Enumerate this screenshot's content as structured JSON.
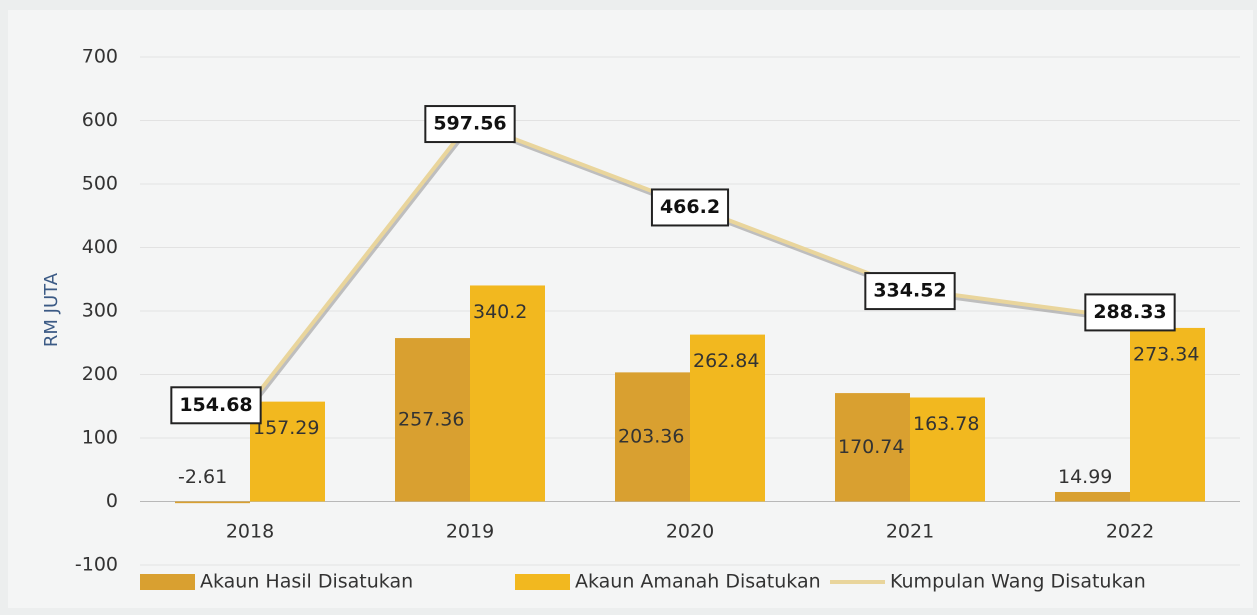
{
  "chart_data": {
    "type": "bar+line",
    "y_axis_label": "RM JUTA",
    "categories": [
      "2018",
      "2019",
      "2020",
      "2021",
      "2022"
    ],
    "series": [
      {
        "name": "Akaun Hasil Disatukan",
        "type": "bar",
        "color": "#d9a030",
        "values": [
          -2.61,
          257.36,
          203.36,
          170.74,
          14.99
        ]
      },
      {
        "name": "Akaun Amanah Disatukan",
        "type": "bar",
        "color": "#f2b81f",
        "values": [
          157.29,
          340.2,
          262.84,
          163.78,
          273.34
        ]
      },
      {
        "name": "Kumpulan Wang Disatukan",
        "type": "line",
        "color": "#e9d59c",
        "values": [
          154.68,
          597.56,
          466.2,
          334.52,
          288.33
        ]
      }
    ],
    "ylim": [
      -100,
      700
    ],
    "yticks": [
      -100,
      0,
      100,
      200,
      300,
      400,
      500,
      600,
      700
    ],
    "grid": true,
    "legend": "bottom"
  }
}
